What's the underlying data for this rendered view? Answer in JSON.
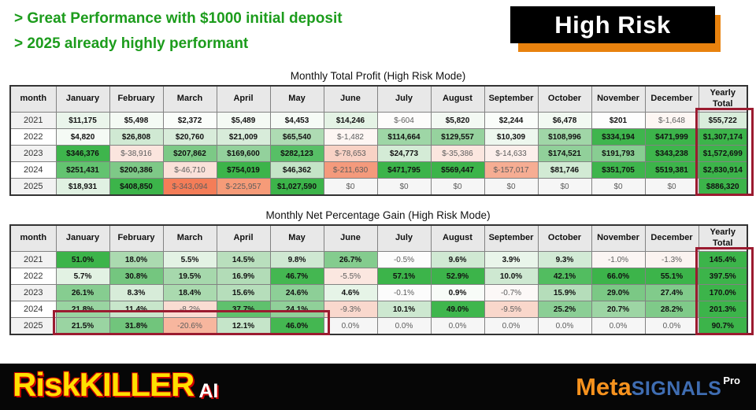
{
  "header": {
    "line1": "> Great Performance with $1000 initial deposit",
    "line2": "> 2025 already highly performant",
    "badge": "High Risk"
  },
  "colors": {
    "headline_green": "#1c9c1c",
    "badge_orange": "#e8820e",
    "badge_black": "#000000",
    "accent_green": "#3cb44a",
    "negative_salmon": "#f47d58",
    "highlight_maroon": "#9b1b30",
    "header_gray": "#e8e8e8"
  },
  "brand_left": {
    "main": "RiskKILLER",
    "suffix": "AI"
  },
  "brand_right": {
    "part1": "Meta",
    "part2": "SIGNALS",
    "part3": "Pro"
  },
  "tables": {
    "columns": [
      "month",
      "January",
      "February",
      "March",
      "April",
      "May",
      "June",
      "July",
      "August",
      "September",
      "October",
      "November",
      "December",
      "Yearly Total"
    ],
    "year_stripe": [
      "#f2f2f2",
      "#ffffff",
      "#f2f2f2",
      "#ffffff",
      "#f2f2f2"
    ],
    "profit": {
      "title": "Monthly Total Profit (High Risk Mode)",
      "rows": [
        {
          "year": "2021",
          "cells": [
            {
              "v": "$11,175",
              "c": "#eaf5eb"
            },
            {
              "v": "$5,498",
              "c": "#f4faf4"
            },
            {
              "v": "$2,372",
              "c": "#fafdfa"
            },
            {
              "v": "$5,489",
              "c": "#f4faf4"
            },
            {
              "v": "$4,453",
              "c": "#f6fbf6"
            },
            {
              "v": "$14,246",
              "c": "#e4f3e5"
            },
            {
              "v": "$-604",
              "c": "#fdfcfb"
            },
            {
              "v": "$5,820",
              "c": "#f3f9f3"
            },
            {
              "v": "$2,244",
              "c": "#fafdfa"
            },
            {
              "v": "$6,478",
              "c": "#f2f9f2"
            },
            {
              "v": "$201",
              "c": "#fdfdfd"
            },
            {
              "v": "$-1,648",
              "c": "#fdf6f3"
            },
            {
              "v": "$55,722",
              "c": "#d9eddb"
            }
          ]
        },
        {
          "year": "2022",
          "cells": [
            {
              "v": "$4,820",
              "c": "#f5faf5"
            },
            {
              "v": "$26,808",
              "c": "#d0e9d3"
            },
            {
              "v": "$20,760",
              "c": "#d8ecda"
            },
            {
              "v": "$21,009",
              "c": "#d8ecda"
            },
            {
              "v": "$65,540",
              "c": "#aedbb3"
            },
            {
              "v": "$-1,482",
              "c": "#fdf6f3"
            },
            {
              "v": "$114,664",
              "c": "#9ed6a6"
            },
            {
              "v": "$129,557",
              "c": "#96d29e"
            },
            {
              "v": "$10,309",
              "c": "#edf7ee"
            },
            {
              "v": "$108,996",
              "c": "#a0d6a7"
            },
            {
              "v": "$334,194",
              "c": "#3fb54d"
            },
            {
              "v": "$471,999",
              "c": "#3cb44a"
            },
            {
              "v": "$1,307,174",
              "c": "#3cb44a"
            }
          ]
        },
        {
          "year": "2023",
          "cells": [
            {
              "v": "$346,376",
              "c": "#3eb54c"
            },
            {
              "v": "$-38,916",
              "c": "#fbe5de"
            },
            {
              "v": "$207,862",
              "c": "#7cc986"
            },
            {
              "v": "$169,600",
              "c": "#93d19c"
            },
            {
              "v": "$282,123",
              "c": "#57bf66"
            },
            {
              "v": "$-78,653",
              "c": "#f8d2c5"
            },
            {
              "v": "$24,773",
              "c": "#d4ebd6"
            },
            {
              "v": "$-35,386",
              "c": "#fbe6df"
            },
            {
              "v": "$-14,633",
              "c": "#fcefeb"
            },
            {
              "v": "$174,521",
              "c": "#91d09a"
            },
            {
              "v": "$191,793",
              "c": "#88cd92"
            },
            {
              "v": "$343,238",
              "c": "#3eb54c"
            },
            {
              "v": "$1,572,699",
              "c": "#3cb44a"
            }
          ]
        },
        {
          "year": "2024",
          "cells": [
            {
              "v": "$251,431",
              "c": "#63c370"
            },
            {
              "v": "$200,386",
              "c": "#7ec987"
            },
            {
              "v": "$-46,710",
              "c": "#fae1d9"
            },
            {
              "v": "$754,019",
              "c": "#3cb44a"
            },
            {
              "v": "$46,362",
              "c": "#c4e4c7"
            },
            {
              "v": "$-211,630",
              "c": "#f49a7c"
            },
            {
              "v": "$471,795",
              "c": "#3cb44a"
            },
            {
              "v": "$569,447",
              "c": "#3cb44a"
            },
            {
              "v": "$-157,017",
              "c": "#f6ad93"
            },
            {
              "v": "$81,746",
              "c": "#d2ead4"
            },
            {
              "v": "$351,705",
              "c": "#3eb54c"
            },
            {
              "v": "$519,381",
              "c": "#3cb44a"
            },
            {
              "v": "$2,830,914",
              "c": "#3cb44a"
            }
          ]
        },
        {
          "year": "2025",
          "cells": [
            {
              "v": "$18,931",
              "c": "#e0f1e2"
            },
            {
              "v": "$408,850",
              "c": "#3cb44a"
            },
            {
              "v": "$-343,094",
              "c": "#f47d58"
            },
            {
              "v": "$-225,957",
              "c": "#f69b78"
            },
            {
              "v": "$1,027,590",
              "c": "#3cb44a"
            },
            {
              "v": "$0",
              "c": "#f6f6f6"
            },
            {
              "v": "$0",
              "c": "#f6f6f6"
            },
            {
              "v": "$0",
              "c": "#f6f6f6"
            },
            {
              "v": "$0",
              "c": "#f6f6f6"
            },
            {
              "v": "$0",
              "c": "#f6f6f6"
            },
            {
              "v": "$0",
              "c": "#f6f6f6"
            },
            {
              "v": "$0",
              "c": "#f6f6f6"
            },
            {
              "v": "$886,320",
              "c": "#3cb44a"
            }
          ]
        }
      ]
    },
    "percent": {
      "title": "Monthly Net Percentage Gain (High Risk Mode)",
      "rows": [
        {
          "year": "2021",
          "cells": [
            {
              "v": "51.0%",
              "c": "#3cb44a"
            },
            {
              "v": "18.0%",
              "c": "#abdab0"
            },
            {
              "v": "5.5%",
              "c": "#e3f2e4"
            },
            {
              "v": "14.5%",
              "c": "#b9dfbd"
            },
            {
              "v": "9.8%",
              "c": "#cfe8d2"
            },
            {
              "v": "26.7%",
              "c": "#84cc8e"
            },
            {
              "v": "-0.5%",
              "c": "#fcfcfc"
            },
            {
              "v": "9.6%",
              "c": "#d0e9d3"
            },
            {
              "v": "3.9%",
              "c": "#e9f5ea"
            },
            {
              "v": "9.3%",
              "c": "#d2ead5"
            },
            {
              "v": "-1.0%",
              "c": "#fbf5f3"
            },
            {
              "v": "-1.3%",
              "c": "#fbf3f0"
            },
            {
              "v": "145.4%",
              "c": "#3cb44a"
            }
          ]
        },
        {
          "year": "2022",
          "cells": [
            {
              "v": "5.7%",
              "c": "#e2f2e3"
            },
            {
              "v": "30.8%",
              "c": "#74c67f"
            },
            {
              "v": "19.5%",
              "c": "#a6d8ac"
            },
            {
              "v": "16.9%",
              "c": "#b2dcb7"
            },
            {
              "v": "46.7%",
              "c": "#44b751"
            },
            {
              "v": "-5.5%",
              "c": "#fbe7e0"
            },
            {
              "v": "57.1%",
              "c": "#3cb44a"
            },
            {
              "v": "52.9%",
              "c": "#3cb44a"
            },
            {
              "v": "10.0%",
              "c": "#cee8d1"
            },
            {
              "v": "42.1%",
              "c": "#52bd60"
            },
            {
              "v": "66.0%",
              "c": "#3cb44a"
            },
            {
              "v": "55.1%",
              "c": "#3cb44a"
            },
            {
              "v": "397.5%",
              "c": "#3cb44a"
            }
          ]
        },
        {
          "year": "2023",
          "cells": [
            {
              "v": "26.1%",
              "c": "#86cd90"
            },
            {
              "v": "8.3%",
              "c": "#d7ecd9"
            },
            {
              "v": "18.4%",
              "c": "#aadaaf"
            },
            {
              "v": "15.6%",
              "c": "#b6debb"
            },
            {
              "v": "24.6%",
              "c": "#8dcf97"
            },
            {
              "v": "4.6%",
              "c": "#e6f4e7"
            },
            {
              "v": "-0.1%",
              "c": "#fcfcfc"
            },
            {
              "v": "0.9%",
              "c": "#f8fcf8"
            },
            {
              "v": "-0.7%",
              "c": "#fcf8f7"
            },
            {
              "v": "15.9%",
              "c": "#b5ddba"
            },
            {
              "v": "29.0%",
              "c": "#7bc885"
            },
            {
              "v": "27.4%",
              "c": "#81cb8b"
            },
            {
              "v": "170.0%",
              "c": "#3cb44a"
            }
          ]
        },
        {
          "year": "2024",
          "cells": [
            {
              "v": "21.8%",
              "c": "#99d4a1"
            },
            {
              "v": "11.4%",
              "c": "#c8e6cb"
            },
            {
              "v": "-8.2%",
              "c": "#fadcd2"
            },
            {
              "v": "37.7%",
              "c": "#5fc16d"
            },
            {
              "v": "24.1%",
              "c": "#90d099"
            },
            {
              "v": "-9.3%",
              "c": "#f9d8cd"
            },
            {
              "v": "10.1%",
              "c": "#cde8d0"
            },
            {
              "v": "49.0%",
              "c": "#3fb64d"
            },
            {
              "v": "-9.5%",
              "c": "#f9d7cb"
            },
            {
              "v": "25.2%",
              "c": "#8bce95"
            },
            {
              "v": "20.7%",
              "c": "#9dd5a4"
            },
            {
              "v": "28.2%",
              "c": "#7fca89"
            },
            {
              "v": "201.3%",
              "c": "#3cb44a"
            }
          ]
        },
        {
          "year": "2025",
          "cells": [
            {
              "v": "21.5%",
              "c": "#9ad4a2"
            },
            {
              "v": "31.8%",
              "c": "#71c57c"
            },
            {
              "v": "-20.6%",
              "c": "#f7b69e"
            },
            {
              "v": "12.1%",
              "c": "#c5e5c9"
            },
            {
              "v": "46.0%",
              "c": "#44b751"
            },
            {
              "v": "0.0%",
              "c": "#f6f6f6"
            },
            {
              "v": "0.0%",
              "c": "#f6f6f6"
            },
            {
              "v": "0.0%",
              "c": "#f6f6f6"
            },
            {
              "v": "0.0%",
              "c": "#f6f6f6"
            },
            {
              "v": "0.0%",
              "c": "#f6f6f6"
            },
            {
              "v": "0.0%",
              "c": "#f6f6f6"
            },
            {
              "v": "0.0%",
              "c": "#f6f6f6"
            },
            {
              "v": "90.7%",
              "c": "#3cb44a"
            }
          ]
        }
      ]
    }
  },
  "chart_data": [
    {
      "type": "table",
      "title": "Monthly Total Profit (High Risk Mode)",
      "categories": [
        "January",
        "February",
        "March",
        "April",
        "May",
        "June",
        "July",
        "August",
        "September",
        "October",
        "November",
        "December"
      ],
      "series": [
        {
          "name": "2021",
          "values": [
            11175,
            5498,
            2372,
            5489,
            4453,
            14246,
            -604,
            5820,
            2244,
            6478,
            201,
            -1648
          ],
          "yearly_total": 55722
        },
        {
          "name": "2022",
          "values": [
            4820,
            26808,
            20760,
            21009,
            65540,
            -1482,
            114664,
            129557,
            10309,
            108996,
            334194,
            471999
          ],
          "yearly_total": 1307174
        },
        {
          "name": "2023",
          "values": [
            346376,
            -38916,
            207862,
            169600,
            282123,
            -78653,
            24773,
            -35386,
            -14633,
            174521,
            191793,
            343238
          ],
          "yearly_total": 1572699
        },
        {
          "name": "2024",
          "values": [
            251431,
            200386,
            -46710,
            754019,
            46362,
            -211630,
            471795,
            569447,
            -157017,
            81746,
            351705,
            519381
          ],
          "yearly_total": 2830914
        },
        {
          "name": "2025",
          "values": [
            18931,
            408850,
            -343094,
            -225957,
            1027590,
            0,
            0,
            0,
            0,
            0,
            0,
            0
          ],
          "yearly_total": 886320
        }
      ],
      "units": "USD"
    },
    {
      "type": "table",
      "title": "Monthly Net Percentage Gain (High Risk Mode)",
      "categories": [
        "January",
        "February",
        "March",
        "April",
        "May",
        "June",
        "July",
        "August",
        "September",
        "October",
        "November",
        "December"
      ],
      "series": [
        {
          "name": "2021",
          "values": [
            51.0,
            18.0,
            5.5,
            14.5,
            9.8,
            26.7,
            -0.5,
            9.6,
            3.9,
            9.3,
            -1.0,
            -1.3
          ],
          "yearly_total": 145.4
        },
        {
          "name": "2022",
          "values": [
            5.7,
            30.8,
            19.5,
            16.9,
            46.7,
            -5.5,
            57.1,
            52.9,
            10.0,
            42.1,
            66.0,
            55.1
          ],
          "yearly_total": 397.5
        },
        {
          "name": "2023",
          "values": [
            26.1,
            8.3,
            18.4,
            15.6,
            24.6,
            4.6,
            -0.1,
            0.9,
            -0.7,
            15.9,
            29.0,
            27.4
          ],
          "yearly_total": 170.0
        },
        {
          "name": "2024",
          "values": [
            21.8,
            11.4,
            -8.2,
            37.7,
            24.1,
            -9.3,
            10.1,
            49.0,
            -9.5,
            25.2,
            20.7,
            28.2
          ],
          "yearly_total": 201.3
        },
        {
          "name": "2025",
          "values": [
            21.5,
            31.8,
            -20.6,
            12.1,
            46.0,
            0,
            0,
            0,
            0,
            0,
            0,
            0
          ],
          "yearly_total": 90.7
        }
      ],
      "units": "%"
    }
  ]
}
